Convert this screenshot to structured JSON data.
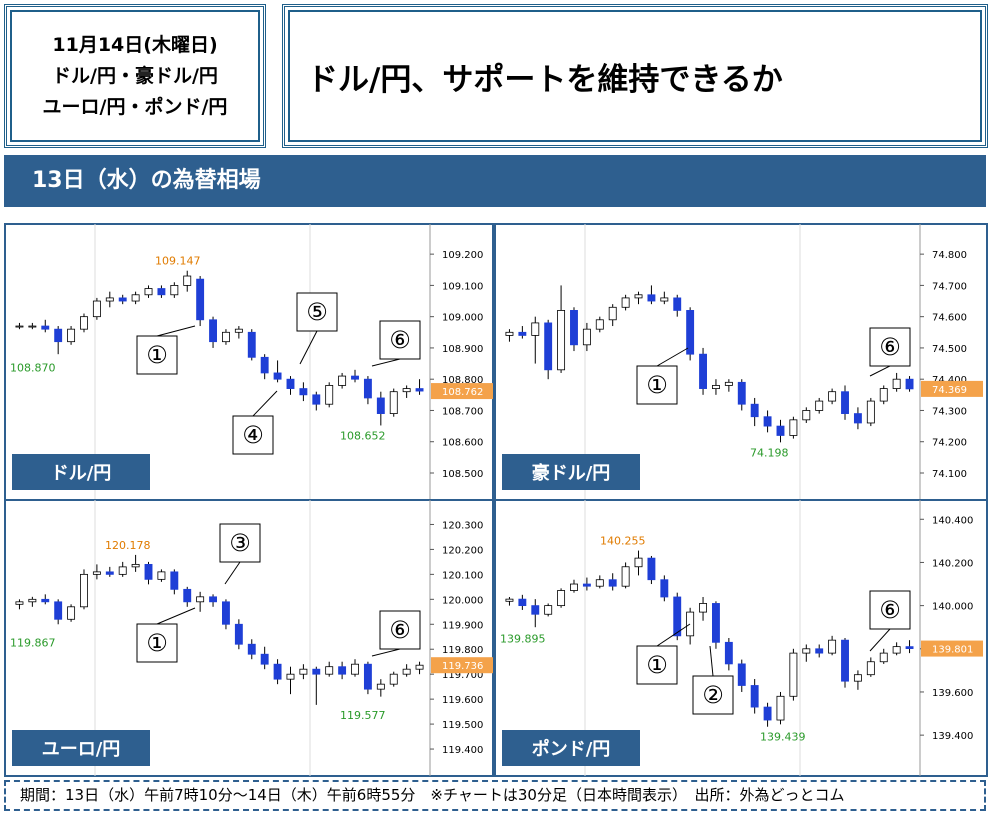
{
  "header": {
    "date_box": [
      "11月14日(木曜日)",
      "ドル/円・豪ドル/円",
      "ユーロ/円・ポンド/円"
    ],
    "title": "ドル/円、サポートを維持できるか",
    "section": "13日（水）の為替相場"
  },
  "footer": "期間：13日（水）午前7時10分～14日（木）午前6時55分　※チャートは30分足（日本時間表示）　出所：外為どっとコム",
  "chart_data": [
    {
      "type": "candlestick",
      "title": "ドル/円",
      "up_color": "#ffffff",
      "down_color": "#1f3fd6",
      "ylim": [
        108.42,
        109.29
      ],
      "yticks": [
        {
          "value": 109.2,
          "label": "109.200"
        },
        {
          "value": 109.1,
          "label": "109.100"
        },
        {
          "value": 109.0,
          "label": "109.000"
        },
        {
          "value": 108.9,
          "label": "108.900"
        },
        {
          "value": 108.8,
          "label": "108.800"
        },
        {
          "value": 108.7,
          "label": "108.700"
        },
        {
          "value": 108.6,
          "label": "108.600"
        },
        {
          "value": 108.5,
          "label": "108.500"
        }
      ],
      "open": [
        108.97,
        108.97,
        108.97,
        108.96,
        108.92,
        108.96,
        109.0,
        109.05,
        109.06,
        109.05,
        109.07,
        109.09,
        109.07,
        109.1,
        109.12,
        108.99,
        108.92,
        108.95,
        108.95,
        108.87,
        108.82,
        108.8,
        108.77,
        108.75,
        108.72,
        108.78,
        108.81,
        108.8,
        108.74,
        108.69,
        108.76,
        108.77
      ],
      "high": [
        108.98,
        108.98,
        108.99,
        108.97,
        108.97,
        109.01,
        109.06,
        109.08,
        109.07,
        109.08,
        109.1,
        109.1,
        109.11,
        109.147,
        109.13,
        109.0,
        108.96,
        108.97,
        108.96,
        108.88,
        108.86,
        108.81,
        108.79,
        108.76,
        108.79,
        108.82,
        108.83,
        108.81,
        108.76,
        108.77,
        108.78,
        108.8
      ],
      "low": [
        108.96,
        108.96,
        108.95,
        108.88,
        108.91,
        108.95,
        108.99,
        109.03,
        109.04,
        109.04,
        109.06,
        109.06,
        109.06,
        109.08,
        108.97,
        108.9,
        108.91,
        108.93,
        108.86,
        108.8,
        108.79,
        108.75,
        108.73,
        108.7,
        108.71,
        108.77,
        108.79,
        108.72,
        108.652,
        108.68,
        108.74,
        108.75
      ],
      "close": [
        108.97,
        108.97,
        108.96,
        108.92,
        108.96,
        109.0,
        109.05,
        109.06,
        109.05,
        109.07,
        109.09,
        109.07,
        109.1,
        109.13,
        108.99,
        108.92,
        108.95,
        108.96,
        108.87,
        108.82,
        108.8,
        108.77,
        108.75,
        108.72,
        108.78,
        108.81,
        108.8,
        108.74,
        108.69,
        108.76,
        108.77,
        108.762
      ],
      "annotations": [
        {
          "value": 109.147,
          "label": "109.147",
          "color": "#e07b00"
        },
        {
          "value": 108.87,
          "label": "108.870",
          "color": "#2a9a2a"
        },
        {
          "value": 108.652,
          "label": "108.652",
          "color": "#2a9a2a"
        }
      ],
      "last": {
        "value": 108.762,
        "label": "108.762"
      },
      "callouts": [
        "①",
        "⑤",
        "④",
        "⑥"
      ]
    },
    {
      "type": "candlestick",
      "title": "豪ドル/円",
      "up_color": "#ffffff",
      "down_color": "#1f3fd6",
      "ylim": [
        74.02,
        74.89
      ],
      "yticks": [
        {
          "value": 74.8,
          "label": "74.800"
        },
        {
          "value": 74.7,
          "label": "74.700"
        },
        {
          "value": 74.6,
          "label": "74.600"
        },
        {
          "value": 74.5,
          "label": "74.500"
        },
        {
          "value": 74.4,
          "label": "74.400"
        },
        {
          "value": 74.3,
          "label": "74.300"
        },
        {
          "value": 74.2,
          "label": "74.200"
        },
        {
          "value": 74.1,
          "label": "74.100"
        }
      ],
      "open": [
        74.54,
        74.55,
        74.54,
        74.58,
        74.43,
        74.62,
        74.51,
        74.56,
        74.59,
        74.63,
        74.66,
        74.67,
        74.65,
        74.66,
        74.62,
        74.48,
        74.37,
        74.38,
        74.39,
        74.32,
        74.28,
        74.25,
        74.22,
        74.27,
        74.3,
        74.33,
        74.36,
        74.29,
        74.26,
        74.33,
        74.37,
        74.4
      ],
      "high": [
        74.56,
        74.57,
        74.6,
        74.59,
        74.7,
        74.63,
        74.58,
        74.6,
        74.64,
        74.67,
        74.68,
        74.7,
        74.68,
        74.67,
        74.63,
        74.5,
        74.4,
        74.4,
        74.4,
        74.34,
        74.3,
        74.27,
        74.28,
        74.31,
        74.34,
        74.37,
        74.38,
        74.31,
        74.34,
        74.38,
        74.42,
        74.41
      ],
      "low": [
        74.52,
        74.53,
        74.45,
        74.4,
        74.42,
        74.49,
        74.49,
        74.55,
        74.57,
        74.62,
        74.64,
        74.64,
        74.64,
        74.6,
        74.46,
        74.35,
        74.35,
        74.36,
        74.3,
        74.25,
        74.23,
        74.198,
        74.21,
        74.26,
        74.29,
        74.32,
        74.27,
        74.24,
        74.25,
        74.32,
        74.36,
        74.36
      ],
      "close": [
        74.55,
        74.54,
        74.58,
        74.43,
        74.62,
        74.51,
        74.56,
        74.59,
        74.63,
        74.66,
        74.67,
        74.65,
        74.66,
        74.62,
        74.48,
        74.37,
        74.38,
        74.39,
        74.32,
        74.28,
        74.25,
        74.22,
        74.27,
        74.3,
        74.33,
        74.36,
        74.29,
        74.26,
        74.33,
        74.37,
        74.4,
        74.369
      ],
      "annotations": [
        {
          "value": 74.198,
          "label": "74.198",
          "color": "#2a9a2a"
        }
      ],
      "last": {
        "value": 74.369,
        "label": "74.369"
      },
      "callouts": [
        "①",
        "⑥"
      ]
    },
    {
      "type": "candlestick",
      "title": "ユーロ/円",
      "up_color": "#ffffff",
      "down_color": "#1f3fd6",
      "ylim": [
        119.3,
        120.39
      ],
      "yticks": [
        {
          "value": 120.3,
          "label": "120.300"
        },
        {
          "value": 120.2,
          "label": "120.200"
        },
        {
          "value": 120.1,
          "label": "120.100"
        },
        {
          "value": 120.0,
          "label": "120.000"
        },
        {
          "value": 119.9,
          "label": "119.900"
        },
        {
          "value": 119.8,
          "label": "119.800"
        },
        {
          "value": 119.7,
          "label": "119.700"
        },
        {
          "value": 119.6,
          "label": "119.600"
        },
        {
          "value": 119.5,
          "label": "119.500"
        },
        {
          "value": 119.4,
          "label": "119.400"
        }
      ],
      "open": [
        119.98,
        119.99,
        120.0,
        119.99,
        119.92,
        119.97,
        120.1,
        120.11,
        120.1,
        120.13,
        120.14,
        120.08,
        120.11,
        120.04,
        119.99,
        120.01,
        119.99,
        119.9,
        119.82,
        119.78,
        119.74,
        119.68,
        119.7,
        119.72,
        119.7,
        119.73,
        119.7,
        119.74,
        119.64,
        119.66,
        119.7,
        119.72
      ],
      "high": [
        120.0,
        120.01,
        120.02,
        120.0,
        119.98,
        120.12,
        120.14,
        120.13,
        120.15,
        120.178,
        120.15,
        120.12,
        120.12,
        120.05,
        120.03,
        120.02,
        120.0,
        119.92,
        119.84,
        119.81,
        119.76,
        119.73,
        119.74,
        119.73,
        119.75,
        119.75,
        119.76,
        119.75,
        119.68,
        119.71,
        119.74,
        119.75
      ],
      "low": [
        119.96,
        119.97,
        119.98,
        119.9,
        119.91,
        119.96,
        120.08,
        120.09,
        120.09,
        120.11,
        120.06,
        120.07,
        120.02,
        119.97,
        119.95,
        119.97,
        119.88,
        119.8,
        119.76,
        119.72,
        119.66,
        119.62,
        119.68,
        119.577,
        119.69,
        119.68,
        119.69,
        119.62,
        119.61,
        119.65,
        119.69,
        119.7
      ],
      "close": [
        119.99,
        120.0,
        119.99,
        119.92,
        119.97,
        120.1,
        120.11,
        120.1,
        120.13,
        120.14,
        120.08,
        120.11,
        120.04,
        119.99,
        120.01,
        119.99,
        119.9,
        119.82,
        119.78,
        119.74,
        119.68,
        119.7,
        119.72,
        119.7,
        119.73,
        119.7,
        119.74,
        119.64,
        119.66,
        119.7,
        119.72,
        119.736
      ],
      "annotations": [
        {
          "value": 120.178,
          "label": "120.178",
          "color": "#e07b00"
        },
        {
          "value": 119.867,
          "label": "119.867",
          "color": "#2a9a2a"
        },
        {
          "value": 119.577,
          "label": "119.577",
          "color": "#2a9a2a"
        }
      ],
      "last": {
        "value": 119.736,
        "label": "119.736"
      },
      "callouts": [
        "③",
        "①",
        "⑥"
      ]
    },
    {
      "type": "candlestick",
      "title": "ポンド/円",
      "up_color": "#ffffff",
      "down_color": "#1f3fd6",
      "ylim": [
        139.22,
        140.48
      ],
      "yticks": [
        {
          "value": 140.4,
          "label": "140.400"
        },
        {
          "value": 140.2,
          "label": "140.200"
        },
        {
          "value": 140.0,
          "label": "140.000"
        },
        {
          "value": 139.8,
          "label": "139.800"
        },
        {
          "value": 139.6,
          "label": "139.600"
        },
        {
          "value": 139.4,
          "label": "139.400"
        }
      ],
      "open": [
        140.02,
        140.03,
        140.0,
        139.96,
        140.0,
        140.07,
        140.1,
        140.09,
        140.12,
        140.09,
        140.18,
        140.22,
        140.12,
        140.04,
        139.86,
        139.97,
        140.01,
        139.83,
        139.73,
        139.63,
        139.53,
        139.47,
        139.58,
        139.78,
        139.8,
        139.78,
        139.84,
        139.65,
        139.68,
        139.74,
        139.78,
        139.81
      ],
      "high": [
        140.04,
        140.05,
        140.03,
        140.01,
        140.08,
        140.12,
        140.13,
        140.14,
        140.15,
        140.2,
        140.255,
        140.23,
        140.14,
        140.06,
        139.99,
        140.04,
        140.02,
        139.85,
        139.75,
        139.66,
        139.55,
        139.6,
        139.8,
        139.82,
        139.82,
        139.86,
        139.85,
        139.7,
        139.76,
        139.8,
        139.83,
        139.84
      ],
      "low": [
        140.0,
        139.98,
        139.9,
        139.95,
        139.99,
        140.06,
        140.07,
        140.08,
        140.07,
        140.08,
        140.14,
        140.1,
        140.02,
        139.84,
        139.82,
        139.93,
        139.8,
        139.7,
        139.6,
        139.5,
        139.439,
        139.45,
        139.56,
        139.74,
        139.76,
        139.77,
        139.62,
        139.61,
        139.67,
        139.73,
        139.77,
        139.78
      ],
      "close": [
        140.03,
        140.0,
        139.96,
        140.0,
        140.07,
        140.1,
        140.09,
        140.12,
        140.09,
        140.18,
        140.22,
        140.12,
        140.04,
        139.86,
        139.97,
        140.01,
        139.83,
        139.73,
        139.63,
        139.53,
        139.47,
        139.58,
        139.78,
        139.8,
        139.78,
        139.84,
        139.65,
        139.68,
        139.74,
        139.78,
        139.81,
        139.801
      ],
      "annotations": [
        {
          "value": 140.255,
          "label": "140.255",
          "color": "#e07b00"
        },
        {
          "value": 139.895,
          "label": "139.895",
          "color": "#2a9a2a"
        },
        {
          "value": 139.439,
          "label": "139.439",
          "color": "#2a9a2a"
        }
      ],
      "last": {
        "value": 139.801,
        "label": "139.801"
      },
      "callouts": [
        "①",
        "②",
        "⑥"
      ]
    }
  ]
}
